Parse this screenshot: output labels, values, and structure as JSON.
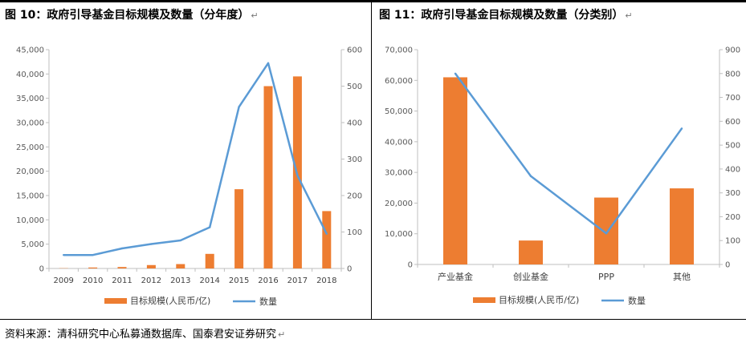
{
  "page": {
    "source_text": "资料来源：清科研究中心私募通数据库、国泰君安证券研究",
    "return_mark": "↵"
  },
  "colors": {
    "bar": "#ED7D31",
    "line": "#5B9BD5",
    "axis": "#bfbfbf",
    "text": "#595959"
  },
  "chart_data": [
    {
      "type": "bar+line",
      "title": "图 10：政府引导基金目标规模及数量（分年度）",
      "categories": [
        "2009",
        "2010",
        "2011",
        "2012",
        "2013",
        "2014",
        "2015",
        "2016",
        "2017",
        "2018"
      ],
      "series": [
        {
          "name": "目标规模(人民币/亿)",
          "type": "bar",
          "axis": "left",
          "values": [
            50,
            200,
            300,
            700,
            900,
            3000,
            16300,
            37500,
            39500,
            11800
          ]
        },
        {
          "name": "数量",
          "type": "line",
          "axis": "right",
          "values": [
            37,
            37,
            55,
            67,
            77,
            113,
            443,
            563,
            255,
            95
          ]
        }
      ],
      "y_left": {
        "lim": [
          0,
          45000
        ],
        "ticks": [
          "0",
          "5,000",
          "10,000",
          "15,000",
          "20,000",
          "25,000",
          "30,000",
          "35,000",
          "40,000",
          "45,000"
        ]
      },
      "y_right": {
        "lim": [
          0,
          600
        ],
        "ticks": [
          "0",
          "100",
          "200",
          "300",
          "400",
          "500",
          "600"
        ]
      },
      "legend": {
        "position": "bottom"
      }
    },
    {
      "type": "bar+line",
      "title": "图 11：政府引导基金目标规模及数量（分类别）",
      "categories": [
        "产业基金",
        "创业基金",
        "PPP",
        "其他"
      ],
      "series": [
        {
          "name": "目标规模(人民币/亿)",
          "type": "bar",
          "axis": "left",
          "values": [
            61000,
            7800,
            21800,
            24800
          ]
        },
        {
          "name": "数量",
          "type": "line",
          "axis": "right",
          "values": [
            800,
            370,
            130,
            570
          ]
        }
      ],
      "y_left": {
        "lim": [
          0,
          70000
        ],
        "ticks": [
          "0",
          "10,000",
          "20,000",
          "30,000",
          "40,000",
          "50,000",
          "60,000",
          "70,000"
        ]
      },
      "y_right": {
        "lim": [
          0,
          900
        ],
        "ticks": [
          "0",
          "100",
          "200",
          "300",
          "400",
          "500",
          "600",
          "700",
          "800",
          "900"
        ]
      },
      "legend": {
        "position": "bottom"
      }
    }
  ]
}
